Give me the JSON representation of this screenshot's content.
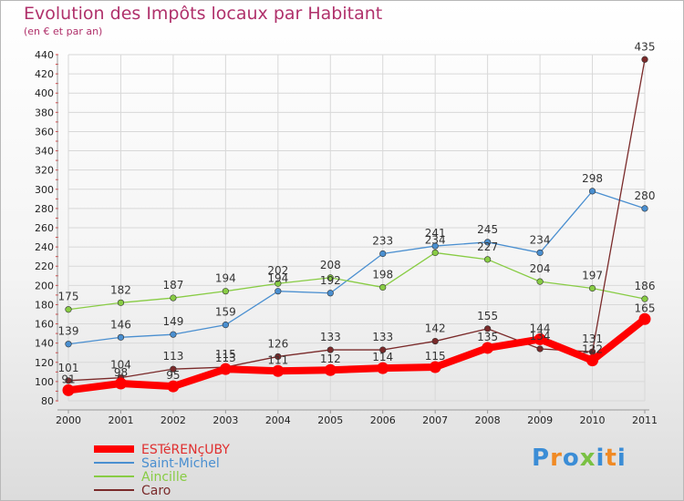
{
  "header": {
    "title": "Evolution des Impôts locaux par Habitant",
    "subtitle": "(en € et par an)"
  },
  "logo": {
    "text": "Proxiti",
    "colors": [
      "#3b8dd6",
      "#f08a24",
      "#3b8dd6",
      "#7ac143",
      "#3b8dd6",
      "#f08a24",
      "#3b8dd6"
    ]
  },
  "chart_data": {
    "type": "line",
    "x": [
      "2000",
      "2001",
      "2002",
      "2003",
      "2004",
      "2005",
      "2006",
      "2007",
      "2008",
      "2009",
      "2010",
      "2011"
    ],
    "ylim": [
      80,
      440
    ],
    "yticks": [
      80,
      100,
      120,
      140,
      160,
      180,
      200,
      220,
      240,
      260,
      280,
      300,
      320,
      340,
      360,
      380,
      400,
      420,
      440
    ],
    "grid": true,
    "legend_position": "bottom-left",
    "series": [
      {
        "name": "ESTéRENçUBY",
        "color": "#ff0000",
        "values": [
          91,
          98,
          95,
          113,
          111,
          112,
          114,
          115,
          135,
          144,
          122,
          165
        ],
        "labels": [
          "91",
          "98",
          "95",
          "113",
          "111",
          "112",
          "114",
          "115",
          "135",
          "144",
          "122",
          "165"
        ]
      },
      {
        "name": "Saint-Michel",
        "color": "#4a8fd0",
        "values": [
          139,
          146,
          149,
          159,
          194,
          192,
          233,
          241,
          245,
          234,
          298,
          280
        ],
        "labels": [
          "139",
          "146",
          "149",
          "159",
          "194",
          "192",
          "233",
          "241",
          "245",
          "234",
          "298",
          "280"
        ]
      },
      {
        "name": "Aincille",
        "color": "#88cc44",
        "values": [
          175,
          182,
          187,
          194,
          202,
          208,
          198,
          234,
          227,
          204,
          197,
          186
        ],
        "labels": [
          "175",
          "182",
          "187",
          "194",
          "202",
          "208",
          "198",
          "234",
          "227",
          "204",
          "197",
          "186"
        ]
      },
      {
        "name": "Caro",
        "color": "#7a2a2a",
        "values": [
          101,
          104,
          113,
          115,
          126,
          133,
          133,
          142,
          155,
          134,
          131,
          435
        ],
        "labels": [
          "101",
          "104",
          "113",
          "115",
          "126",
          "133",
          "133",
          "142",
          "155",
          "134",
          "131",
          "435"
        ]
      }
    ]
  }
}
